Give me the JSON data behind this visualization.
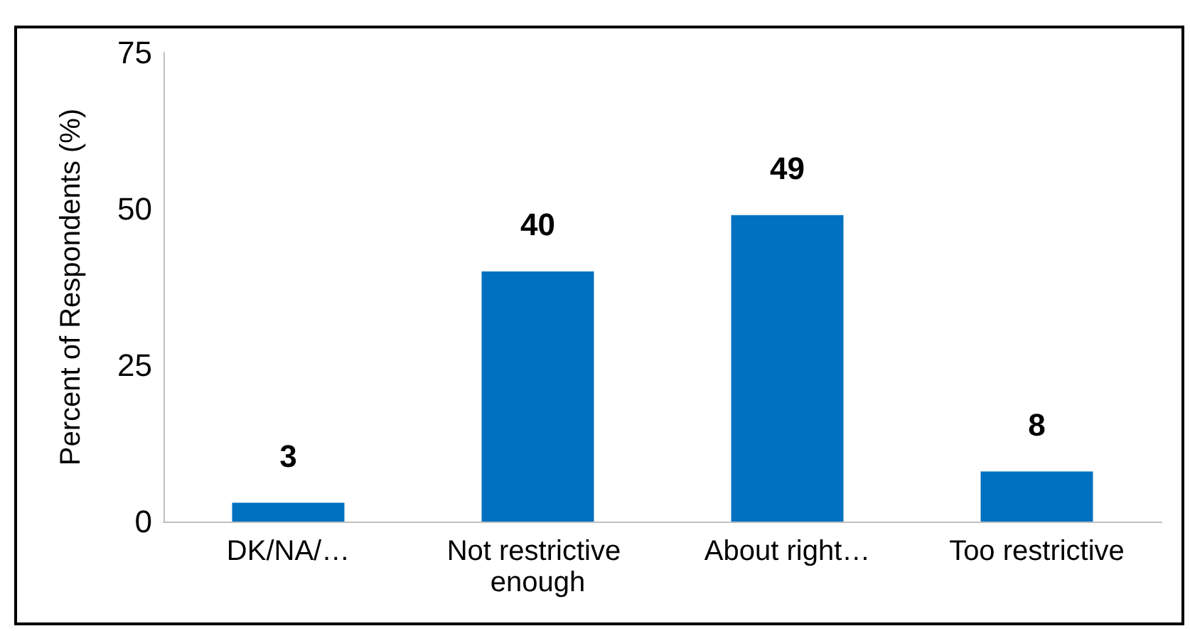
{
  "chart_data": {
    "type": "bar",
    "ylabel": "Percent of Respondents (%)",
    "categories": [
      "DK/NA/…",
      "Not restrictive enough",
      "About right…",
      "Too restrictive"
    ],
    "values": [
      3,
      40,
      49,
      8
    ],
    "color": "#0070c0",
    "data_labels": true,
    "ylim": [
      0,
      75
    ],
    "yticks": [
      0,
      25,
      50,
      75
    ]
  }
}
